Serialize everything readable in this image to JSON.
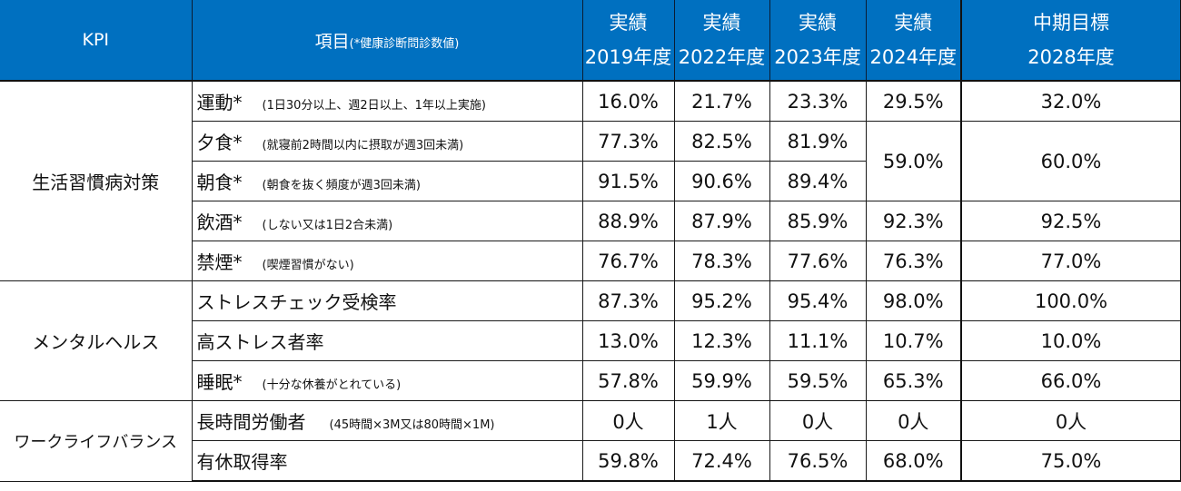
{
  "header": {
    "kpi": "KPI",
    "item": "項目",
    "item_note": "(*健康診断問診数値)",
    "columns": [
      {
        "top": "実績",
        "bottom": "2019年度"
      },
      {
        "top": "実績",
        "bottom": "2022年度"
      },
      {
        "top": "実績",
        "bottom": "2023年度"
      },
      {
        "top": "実績",
        "bottom": "2024年度"
      },
      {
        "top": "中期目標",
        "bottom": "2028年度"
      }
    ]
  },
  "groups": [
    {
      "category": "生活習慣病対策",
      "rows": [
        {
          "label": "運動*",
          "note": "(1日30分以上、週2日以上、1年以上実施)",
          "values": [
            "16.0%",
            "21.7%",
            "23.3%",
            "29.5%",
            "32.0%"
          ]
        },
        {
          "label": "夕食*",
          "note": "(就寝前2時間以内に摂取が週3回未満)",
          "values": [
            "77.3%",
            "82.5%",
            "81.9%"
          ]
        },
        {
          "label": "朝食*",
          "note": "(朝食を抜く頻度が週3回未満)",
          "values": [
            "91.5%",
            "90.6%",
            "89.4%"
          ]
        },
        {
          "label": "飲酒*",
          "note": "(しない又は1日2合未満)",
          "values": [
            "88.9%",
            "87.9%",
            "85.9%",
            "92.3%",
            "92.5%"
          ]
        },
        {
          "label": "禁煙*",
          "note": "(喫煙習慣がない)",
          "values": [
            "76.7%",
            "78.3%",
            "77.6%",
            "76.3%",
            "77.0%"
          ]
        }
      ],
      "merged_meal": {
        "2024": "59.0%",
        "2028": "60.0%"
      }
    },
    {
      "category": "メンタルヘルス",
      "rows": [
        {
          "label": "ストレスチェック受検率",
          "note": "",
          "values": [
            "87.3%",
            "95.2%",
            "95.4%",
            "98.0%",
            "100.0%"
          ]
        },
        {
          "label": "高ストレス者率",
          "note": "",
          "values": [
            "13.0%",
            "12.3%",
            "11.1%",
            "10.7%",
            "10.0%"
          ]
        },
        {
          "label": "睡眠*",
          "note": "(十分な休養がとれている)",
          "values": [
            "57.8%",
            "59.9%",
            "59.5%",
            "65.3%",
            "66.0%"
          ]
        }
      ]
    },
    {
      "category": "ワークライフバランス",
      "rows": [
        {
          "label": "長時間労働者",
          "note": "(45時間×3M又は80時間×1M)",
          "values": [
            "0人",
            "1人",
            "0人",
            "0人",
            "0人"
          ]
        },
        {
          "label": "有休取得率",
          "note": "",
          "values": [
            "59.8%",
            "72.4%",
            "76.5%",
            "68.0%",
            "75.0%"
          ]
        }
      ]
    }
  ],
  "colors": {
    "header_bg": "#0070c0",
    "header_text": "#ffffff",
    "border": "#1a1a1a"
  }
}
